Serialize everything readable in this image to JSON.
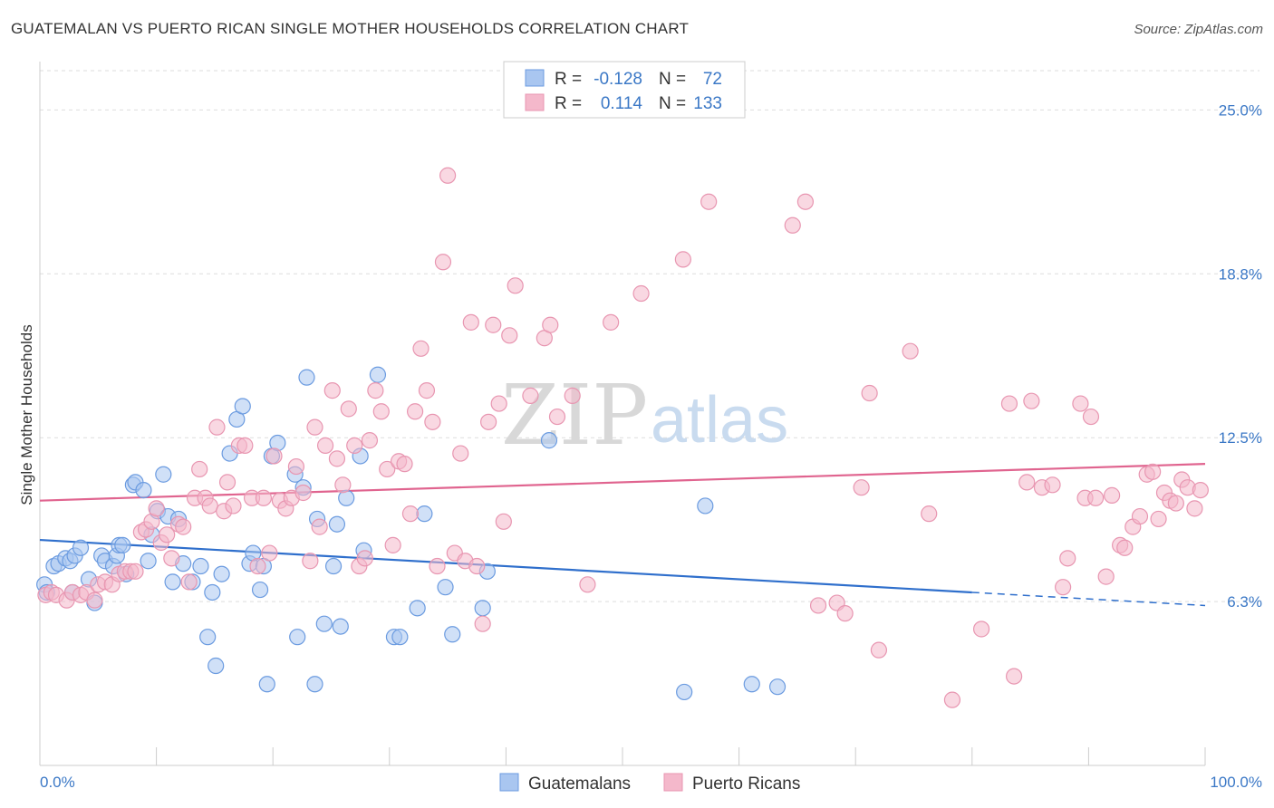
{
  "title": "GUATEMALAN VS PUERTO RICAN SINGLE MOTHER HOUSEHOLDS CORRELATION CHART",
  "source": "Source: ZipAtlas.com",
  "watermark": {
    "zip": "ZIP",
    "atlas": "atlas"
  },
  "colors": {
    "blue_fill": "#a9c6f0",
    "blue_stroke": "#6b9be0",
    "blue_line": "#2f6fcc",
    "pink_fill": "#f4b8cb",
    "pink_stroke": "#e896b1",
    "pink_line": "#e0648f",
    "grid": "#dddddd",
    "tick_text": "#3b78c6"
  },
  "legend": {
    "rows": [
      {
        "r_label": "R =",
        "r_value": "-0.128",
        "n_label": "N =",
        "n_value": "72"
      },
      {
        "r_label": "R =",
        "r_value": "0.114",
        "n_label": "N =",
        "n_value": "133"
      }
    ]
  },
  "bottom_legend": [
    "Guatemalans",
    "Puerto Ricans"
  ],
  "chart_data": {
    "type": "scatter",
    "ylabel": "Single Mother Households",
    "x_tick_labels": [
      "0.0%",
      "100.0%"
    ],
    "y_tick_labels": [
      "6.3%",
      "12.5%",
      "18.8%",
      "25.0%"
    ],
    "y_ticks": [
      6.25,
      12.5,
      18.75,
      25.0
    ],
    "xlim": [
      0,
      100
    ],
    "ylim": [
      0,
      26.5
    ],
    "legend_position": "top-center",
    "series": [
      {
        "name": "Guatemalans",
        "color_key": "blue",
        "trend": {
          "x0": 0,
          "y0": 8.6,
          "x1": 80,
          "y1": 6.6,
          "dash_to_x": 100,
          "dash_to_y": 6.1
        },
        "points": [
          [
            0.4,
            6.9
          ],
          [
            1.2,
            7.6
          ],
          [
            1.6,
            7.7
          ],
          [
            2.2,
            7.9
          ],
          [
            2.6,
            7.8
          ],
          [
            3.0,
            8.0
          ],
          [
            3.5,
            8.3
          ],
          [
            4.2,
            7.1
          ],
          [
            4.7,
            6.2
          ],
          [
            5.3,
            8.0
          ],
          [
            5.6,
            7.8
          ],
          [
            6.3,
            7.6
          ],
          [
            6.6,
            8.0
          ],
          [
            6.8,
            8.4
          ],
          [
            7.1,
            8.4
          ],
          [
            7.4,
            7.3
          ],
          [
            8.0,
            10.7
          ],
          [
            8.2,
            10.8
          ],
          [
            8.9,
            10.5
          ],
          [
            9.3,
            7.8
          ],
          [
            9.6,
            8.8
          ],
          [
            10.1,
            9.7
          ],
          [
            10.6,
            11.1
          ],
          [
            11.0,
            9.5
          ],
          [
            11.4,
            7.0
          ],
          [
            11.9,
            9.4
          ],
          [
            12.3,
            7.7
          ],
          [
            13.1,
            7.0
          ],
          [
            13.8,
            7.6
          ],
          [
            14.4,
            4.9
          ],
          [
            14.8,
            6.6
          ],
          [
            15.1,
            3.8
          ],
          [
            15.6,
            7.3
          ],
          [
            16.3,
            11.9
          ],
          [
            16.9,
            13.2
          ],
          [
            17.4,
            13.7
          ],
          [
            18.0,
            7.7
          ],
          [
            18.3,
            8.1
          ],
          [
            18.9,
            6.7
          ],
          [
            19.2,
            7.6
          ],
          [
            19.5,
            3.1
          ],
          [
            19.9,
            11.8
          ],
          [
            20.4,
            12.3
          ],
          [
            21.9,
            11.1
          ],
          [
            22.1,
            4.9
          ],
          [
            22.6,
            10.6
          ],
          [
            22.9,
            14.8
          ],
          [
            23.6,
            3.1
          ],
          [
            23.8,
            9.4
          ],
          [
            24.4,
            5.4
          ],
          [
            25.2,
            7.6
          ],
          [
            25.5,
            9.2
          ],
          [
            25.8,
            5.3
          ],
          [
            26.3,
            10.2
          ],
          [
            27.5,
            11.8
          ],
          [
            27.8,
            8.2
          ],
          [
            29.0,
            14.9
          ],
          [
            30.4,
            4.9
          ],
          [
            30.9,
            4.9
          ],
          [
            32.4,
            6.0
          ],
          [
            33.0,
            9.6
          ],
          [
            34.8,
            6.8
          ],
          [
            35.4,
            5.0
          ],
          [
            38.0,
            6.0
          ],
          [
            38.4,
            7.4
          ],
          [
            43.7,
            12.4
          ],
          [
            55.3,
            2.8
          ],
          [
            57.1,
            9.9
          ],
          [
            61.1,
            3.1
          ],
          [
            63.3,
            3.0
          ],
          [
            0.6,
            6.6
          ],
          [
            2.8,
            6.6
          ]
        ]
      },
      {
        "name": "Puerto Ricans",
        "color_key": "pink",
        "trend": {
          "x0": 0,
          "y0": 10.1,
          "x1": 100,
          "y1": 11.5
        },
        "points": [
          [
            0.5,
            6.5
          ],
          [
            1.0,
            6.6
          ],
          [
            1.4,
            6.5
          ],
          [
            2.3,
            6.3
          ],
          [
            2.8,
            6.6
          ],
          [
            3.5,
            6.5
          ],
          [
            4.0,
            6.6
          ],
          [
            4.7,
            6.3
          ],
          [
            5.0,
            6.9
          ],
          [
            5.6,
            7.0
          ],
          [
            6.2,
            6.9
          ],
          [
            6.8,
            7.3
          ],
          [
            7.3,
            7.4
          ],
          [
            7.8,
            7.4
          ],
          [
            8.2,
            7.4
          ],
          [
            8.7,
            8.9
          ],
          [
            9.1,
            9.0
          ],
          [
            9.6,
            9.3
          ],
          [
            10.0,
            9.8
          ],
          [
            10.4,
            8.5
          ],
          [
            10.9,
            8.8
          ],
          [
            11.3,
            7.9
          ],
          [
            11.9,
            9.2
          ],
          [
            12.3,
            9.1
          ],
          [
            12.8,
            7.0
          ],
          [
            13.3,
            10.2
          ],
          [
            13.7,
            11.3
          ],
          [
            14.2,
            10.2
          ],
          [
            14.6,
            9.9
          ],
          [
            15.2,
            12.9
          ],
          [
            15.8,
            9.7
          ],
          [
            16.1,
            10.8
          ],
          [
            16.6,
            9.9
          ],
          [
            17.1,
            12.2
          ],
          [
            17.6,
            12.2
          ],
          [
            18.2,
            10.2
          ],
          [
            18.7,
            7.6
          ],
          [
            19.2,
            10.2
          ],
          [
            19.7,
            8.1
          ],
          [
            20.1,
            11.8
          ],
          [
            20.6,
            10.1
          ],
          [
            21.1,
            9.8
          ],
          [
            21.6,
            10.2
          ],
          [
            22.0,
            11.4
          ],
          [
            22.6,
            10.4
          ],
          [
            23.2,
            7.8
          ],
          [
            23.6,
            12.9
          ],
          [
            24.0,
            9.1
          ],
          [
            24.5,
            12.2
          ],
          [
            25.1,
            14.3
          ],
          [
            25.5,
            11.7
          ],
          [
            26.0,
            10.7
          ],
          [
            26.5,
            13.6
          ],
          [
            27.0,
            12.2
          ],
          [
            27.4,
            7.6
          ],
          [
            27.9,
            7.9
          ],
          [
            28.3,
            12.4
          ],
          [
            28.8,
            14.3
          ],
          [
            29.3,
            13.5
          ],
          [
            29.8,
            11.3
          ],
          [
            30.3,
            8.4
          ],
          [
            30.8,
            11.6
          ],
          [
            31.3,
            11.5
          ],
          [
            31.8,
            9.6
          ],
          [
            32.2,
            13.5
          ],
          [
            32.7,
            15.9
          ],
          [
            33.2,
            14.3
          ],
          [
            33.7,
            13.1
          ],
          [
            34.1,
            7.6
          ],
          [
            34.6,
            19.2
          ],
          [
            35.0,
            22.5
          ],
          [
            35.6,
            8.1
          ],
          [
            36.1,
            11.9
          ],
          [
            36.5,
            7.8
          ],
          [
            37.0,
            16.9
          ],
          [
            37.5,
            7.6
          ],
          [
            38.0,
            5.4
          ],
          [
            38.5,
            13.1
          ],
          [
            38.9,
            16.8
          ],
          [
            39.4,
            13.8
          ],
          [
            39.8,
            9.3
          ],
          [
            40.3,
            16.4
          ],
          [
            40.8,
            18.3
          ],
          [
            42.1,
            14.1
          ],
          [
            43.3,
            16.3
          ],
          [
            43.8,
            16.8
          ],
          [
            44.4,
            13.3
          ],
          [
            45.7,
            14.1
          ],
          [
            47.0,
            6.9
          ],
          [
            49.0,
            16.9
          ],
          [
            51.6,
            18.0
          ],
          [
            55.2,
            19.3
          ],
          [
            57.4,
            21.5
          ],
          [
            64.6,
            20.6
          ],
          [
            65.7,
            21.5
          ],
          [
            66.8,
            6.1
          ],
          [
            68.4,
            6.2
          ],
          [
            69.1,
            5.8
          ],
          [
            70.5,
            10.6
          ],
          [
            71.2,
            14.2
          ],
          [
            72.0,
            4.4
          ],
          [
            74.7,
            15.8
          ],
          [
            76.3,
            9.6
          ],
          [
            78.3,
            2.5
          ],
          [
            80.8,
            5.2
          ],
          [
            83.2,
            13.8
          ],
          [
            83.6,
            3.4
          ],
          [
            84.7,
            10.8
          ],
          [
            85.1,
            13.9
          ],
          [
            86.0,
            10.6
          ],
          [
            86.9,
            10.7
          ],
          [
            87.8,
            6.8
          ],
          [
            88.2,
            7.9
          ],
          [
            89.3,
            13.8
          ],
          [
            89.7,
            10.2
          ],
          [
            90.2,
            13.3
          ],
          [
            90.6,
            10.2
          ],
          [
            91.5,
            7.2
          ],
          [
            92.0,
            10.3
          ],
          [
            92.7,
            8.4
          ],
          [
            93.1,
            8.3
          ],
          [
            93.8,
            9.1
          ],
          [
            94.4,
            9.5
          ],
          [
            95.0,
            11.1
          ],
          [
            95.5,
            11.2
          ],
          [
            96.0,
            9.4
          ],
          [
            96.5,
            10.4
          ],
          [
            97.0,
            10.1
          ],
          [
            97.5,
            10.0
          ],
          [
            98.0,
            10.9
          ],
          [
            98.5,
            10.6
          ],
          [
            99.1,
            9.8
          ],
          [
            99.6,
            10.5
          ]
        ]
      }
    ]
  }
}
